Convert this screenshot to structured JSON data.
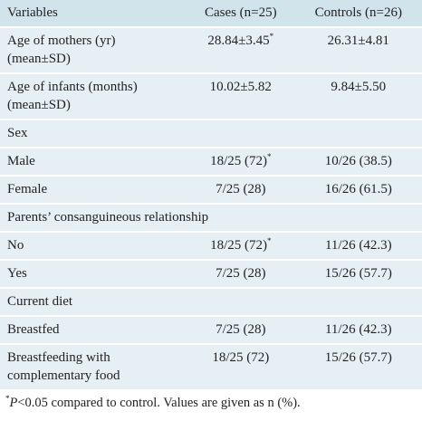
{
  "table": {
    "header": [
      "Variables",
      "Cases (n=25)",
      "Controls (n=26)"
    ],
    "rows": [
      {
        "label": "Age of mothers (yr) (mean±SD)",
        "cases": "28.84±3.45",
        "cases_note": "*",
        "controls": "26.31±4.81"
      },
      {
        "label": "Age of infants (months) (mean±SD)",
        "cases": "10.02±5.82",
        "controls": "9.84±5.50"
      },
      {
        "section": "Sex"
      },
      {
        "label": "Male",
        "cases": "18/25 (72)",
        "cases_note": "*",
        "controls": "10/26 (38.5)"
      },
      {
        "label": "Female",
        "cases": "7/25 (28)",
        "controls": "16/26 (61.5)"
      },
      {
        "section": "Parents’ consanguineous relationship"
      },
      {
        "label": "No",
        "cases": "18/25 (72)",
        "cases_note": "*",
        "controls": "11/26 (42.3)"
      },
      {
        "label": "Yes",
        "cases": "7/25 (28)",
        "controls": "15/26 (57.7)"
      },
      {
        "section": "Current diet"
      },
      {
        "label": "Breastfed",
        "cases": "7/25 (28)",
        "controls": "11/26 (42.3)"
      },
      {
        "label": "Breastfeeding with complementary food",
        "cases": "18/25 (72)",
        "controls": "15/26 (57.7)"
      }
    ]
  },
  "footnote": {
    "marker": "*",
    "italic": "P",
    "text": "<0.05 compared to control. Values are given as n (%)."
  }
}
